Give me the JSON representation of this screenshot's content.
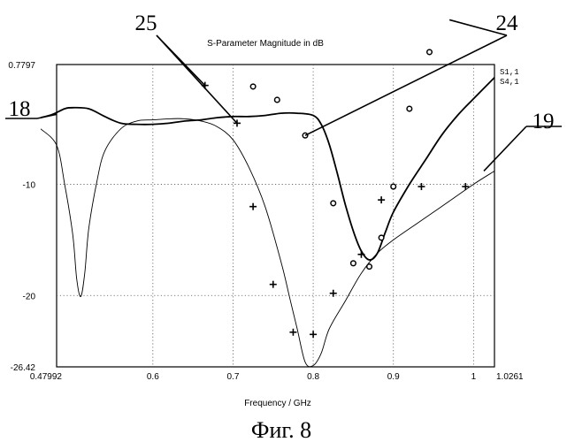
{
  "caption": "Фиг. 8",
  "chart_data": {
    "type": "line",
    "title": "S-Parameter Magnitude in dB",
    "xlabel": "Frequency / GHz",
    "ylabel": "",
    "xlim": [
      0.47992,
      1.0261
    ],
    "ylim": [
      -26.42,
      0.7797
    ],
    "grid": true,
    "legend_position": "top-right",
    "x_ticks": [
      {
        "value": 0.47992,
        "label": "0.47992"
      },
      {
        "value": 0.6,
        "label": "0.6"
      },
      {
        "value": 0.7,
        "label": "0.7"
      },
      {
        "value": 0.8,
        "label": "0.8"
      },
      {
        "value": 0.9,
        "label": "0.9"
      },
      {
        "value": 1.0,
        "label": "1"
      },
      {
        "value": 1.0261,
        "label": "1.0261"
      }
    ],
    "y_ticks": [
      {
        "value": 0.7797,
        "label": "0.7797"
      },
      {
        "value": -10,
        "label": "-10"
      },
      {
        "value": -20,
        "label": "-20"
      },
      {
        "value": -26.42,
        "label": "-26.42"
      }
    ],
    "series": [
      {
        "name": "S1,1",
        "color": "#000000",
        "style": "thick",
        "x": [
          0.46,
          0.475,
          0.49,
          0.5,
          0.52,
          0.54,
          0.56,
          0.58,
          0.6,
          0.62,
          0.64,
          0.66,
          0.68,
          0.7,
          0.72,
          0.74,
          0.76,
          0.78,
          0.8,
          0.81,
          0.82,
          0.83,
          0.84,
          0.85,
          0.86,
          0.87,
          0.88,
          0.89,
          0.9,
          0.92,
          0.94,
          0.96,
          0.98,
          1.0,
          1.0261
        ],
        "y": [
          -4.0,
          -3.7,
          -3.2,
          -3.1,
          -3.2,
          -3.9,
          -4.5,
          -4.6,
          -4.6,
          -4.5,
          -4.3,
          -4.2,
          -4.0,
          -3.9,
          -3.9,
          -3.8,
          -3.6,
          -3.6,
          -3.8,
          -4.6,
          -6.4,
          -9.0,
          -11.8,
          -14.2,
          -16.0,
          -16.8,
          -16.2,
          -14.3,
          -12.5,
          -10.0,
          -7.8,
          -5.6,
          -3.8,
          -2.3,
          -0.4
        ]
      },
      {
        "name": "S4,1",
        "color": "#000000",
        "style": "thin",
        "x": [
          0.46,
          0.48,
          0.49,
          0.5,
          0.505,
          0.51,
          0.515,
          0.52,
          0.53,
          0.54,
          0.56,
          0.58,
          0.6,
          0.62,
          0.64,
          0.66,
          0.68,
          0.7,
          0.72,
          0.74,
          0.76,
          0.77,
          0.78,
          0.79,
          0.8,
          0.81,
          0.82,
          0.84,
          0.86,
          0.88,
          0.9,
          0.93,
          0.96,
          1.0,
          1.0261
        ],
        "y": [
          -5.0,
          -6.5,
          -10.0,
          -14.5,
          -18.5,
          -20.1,
          -18.0,
          -14.0,
          -9.8,
          -7.0,
          -5.0,
          -4.3,
          -4.2,
          -4.1,
          -4.1,
          -4.3,
          -4.8,
          -6.0,
          -8.5,
          -12.0,
          -17.0,
          -20.0,
          -23.0,
          -26.0,
          -26.3,
          -25.2,
          -23.0,
          -20.5,
          -18.0,
          -16.2,
          -15.0,
          -13.5,
          -12.0,
          -10.0,
          -8.8
        ]
      }
    ],
    "markers": [
      {
        "symbol": "+",
        "points": [
          [
            0.665,
            -1.1
          ],
          [
            0.705,
            -4.5
          ],
          [
            0.725,
            -12.0
          ],
          [
            0.75,
            -19.0
          ],
          [
            0.775,
            -23.3
          ],
          [
            0.8,
            -23.5
          ],
          [
            0.825,
            -19.8
          ],
          [
            0.86,
            -16.3
          ],
          [
            0.885,
            -11.4
          ],
          [
            0.935,
            -10.2
          ],
          [
            0.99,
            -10.2
          ]
        ]
      },
      {
        "symbol": "o",
        "points": [
          [
            0.725,
            -1.2
          ],
          [
            0.755,
            -2.4
          ],
          [
            0.79,
            -5.6
          ],
          [
            0.825,
            -11.7
          ],
          [
            0.85,
            -17.1
          ],
          [
            0.87,
            -17.4
          ],
          [
            0.885,
            -14.8
          ],
          [
            0.9,
            -10.2
          ],
          [
            0.92,
            -3.2
          ],
          [
            0.945,
            1.9
          ],
          [
            0.97,
            4.8
          ]
        ]
      }
    ],
    "annotations": [
      {
        "label": "25",
        "targets": [
          [
            0.665,
            -1.1
          ],
          [
            0.705,
            -4.5
          ]
        ]
      },
      {
        "label": "24",
        "targets": [
          [
            0.79,
            -5.6
          ],
          [
            0.97,
            4.8
          ]
        ]
      },
      {
        "label": "18",
        "targets": [
          [
            0.48,
            -3.7
          ]
        ]
      },
      {
        "label": "19",
        "targets": [
          [
            1.0261,
            -8.8
          ]
        ]
      }
    ]
  }
}
